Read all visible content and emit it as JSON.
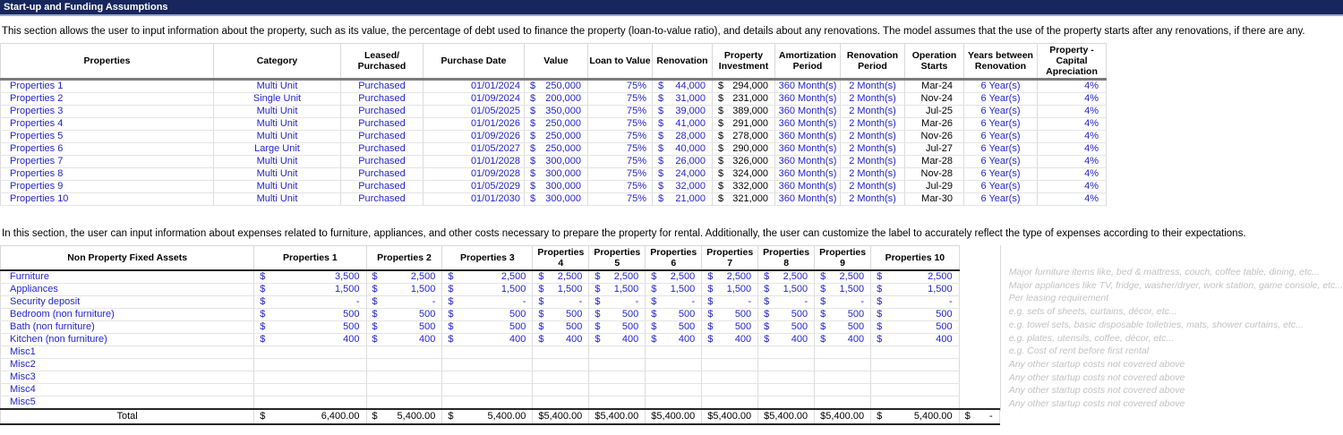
{
  "title": "Start-up and Funding Assumptions",
  "colors": {
    "header_bar": "#17265C",
    "header_bar_accent": "#9AA9CE",
    "input_blue": "#2424CF",
    "calculated_black": "#000000",
    "note_gray": "#C2C2C2",
    "gridline": "#DCDCDC"
  },
  "section1": {
    "description": "This section allows the user to input information about the property, such as its value, the percentage of debt used to finance the property (loan-to-value ratio), and details about any renovations. The model assumes that the use of the property starts after any renovations, if there are any.",
    "columns": [
      "Properties",
      "Category",
      "Leased/\nPurchased",
      "Purchase Date",
      "Value",
      "Loan to Value",
      "Renovation",
      "Property\nInvestment",
      "Amortization\nPeriod",
      "Renovation\nPeriod",
      "Operation\nStarts",
      "Years between\nRenovation",
      "Property - Capital\nApreciation"
    ],
    "rows": [
      [
        "Properties 1",
        "Multi Unit",
        "Purchased",
        "01/01/2024",
        "250,000",
        "75%",
        "44,000",
        "294,000",
        "360 Month(s)",
        "2 Month(s)",
        "Mar-24",
        "6 Year(s)",
        "4%"
      ],
      [
        "Properties 2",
        "Single Unit",
        "Purchased",
        "01/09/2024",
        "200,000",
        "75%",
        "31,000",
        "231,000",
        "360 Month(s)",
        "2 Month(s)",
        "Nov-24",
        "6 Year(s)",
        "4%"
      ],
      [
        "Properties 3",
        "Multi Unit",
        "Purchased",
        "01/05/2025",
        "350,000",
        "75%",
        "39,000",
        "389,000",
        "360 Month(s)",
        "2 Month(s)",
        "Jul-25",
        "6 Year(s)",
        "4%"
      ],
      [
        "Properties 4",
        "Multi Unit",
        "Purchased",
        "01/01/2026",
        "250,000",
        "75%",
        "41,000",
        "291,000",
        "360 Month(s)",
        "2 Month(s)",
        "Mar-26",
        "6 Year(s)",
        "4%"
      ],
      [
        "Properties 5",
        "Multi Unit",
        "Purchased",
        "01/09/2026",
        "250,000",
        "75%",
        "28,000",
        "278,000",
        "360 Month(s)",
        "2 Month(s)",
        "Nov-26",
        "6 Year(s)",
        "4%"
      ],
      [
        "Properties 6",
        "Large Unit",
        "Purchased",
        "01/05/2027",
        "250,000",
        "75%",
        "40,000",
        "290,000",
        "360 Month(s)",
        "2 Month(s)",
        "Jul-27",
        "6 Year(s)",
        "4%"
      ],
      [
        "Properties 7",
        "Multi Unit",
        "Purchased",
        "01/01/2028",
        "300,000",
        "75%",
        "26,000",
        "326,000",
        "360 Month(s)",
        "2 Month(s)",
        "Mar-28",
        "6 Year(s)",
        "4%"
      ],
      [
        "Properties 8",
        "Multi Unit",
        "Purchased",
        "01/09/2028",
        "300,000",
        "75%",
        "24,000",
        "324,000",
        "360 Month(s)",
        "2 Month(s)",
        "Nov-28",
        "6 Year(s)",
        "4%"
      ],
      [
        "Properties 9",
        "Multi Unit",
        "Purchased",
        "01/05/2029",
        "300,000",
        "75%",
        "32,000",
        "332,000",
        "360 Month(s)",
        "2 Month(s)",
        "Jul-29",
        "6 Year(s)",
        "4%"
      ],
      [
        "Properties 10",
        "Multi Unit",
        "Purchased",
        "01/01/2030",
        "300,000",
        "75%",
        "21,000",
        "321,000",
        "360 Month(s)",
        "2 Month(s)",
        "Mar-30",
        "6 Year(s)",
        "4%"
      ]
    ]
  },
  "section2": {
    "description": "In this section, the user can input information about expenses related to furniture, appliances, and other costs necessary to prepare the property for rental. Additionally, the user can customize the label to accurately reflect the type of expenses according to their expectations.",
    "columns": [
      "Non Property Fixed Assets",
      "Properties 1",
      "Properties 2",
      "Properties 3",
      "Properties 4",
      "Properties 5",
      "Properties 6",
      "Properties 7",
      "Properties 8",
      "Properties 9",
      "Properties 10"
    ],
    "rows": [
      {
        "label": "Furniture",
        "values": [
          "3,500",
          "2,500",
          "2,500",
          "2,500",
          "2,500",
          "2,500",
          "2,500",
          "2,500",
          "2,500",
          "2,500"
        ],
        "note": "Major furniture items like, bed & mattress, couch, coffee table, dining, etc..."
      },
      {
        "label": "Appliances",
        "values": [
          "1,500",
          "1,500",
          "1,500",
          "1,500",
          "1,500",
          "1,500",
          "1,500",
          "1,500",
          "1,500",
          "1,500"
        ],
        "note": "Major appliances like TV, fridge, washer/dryer, work station, game console, etc..."
      },
      {
        "label": "Security deposit",
        "values": [
          "-",
          "-",
          "-",
          "-",
          "-",
          "-",
          "-",
          "-",
          "-",
          "-"
        ],
        "note": "Per leasing requirement"
      },
      {
        "label": "Bedroom (non furniture)",
        "values": [
          "500",
          "500",
          "500",
          "500",
          "500",
          "500",
          "500",
          "500",
          "500",
          "500"
        ],
        "note": "e.g. sets of sheets, curtains, décor, etc..."
      },
      {
        "label": "Bath (non furniture)",
        "values": [
          "500",
          "500",
          "500",
          "500",
          "500",
          "500",
          "500",
          "500",
          "500",
          "500"
        ],
        "note": "e.g. towel sets, basic disposable toiletries, mats, shower curtains, etc..."
      },
      {
        "label": "Kitchen (non furniture)",
        "values": [
          "400",
          "400",
          "400",
          "400",
          "400",
          "400",
          "400",
          "400",
          "400",
          "400"
        ],
        "note": "e.g. plates, utensils, coffee, décor, etc..."
      },
      {
        "label": "Misc1",
        "values": [
          "",
          "",
          "",
          "",
          "",
          "",
          "",
          "",
          "",
          ""
        ],
        "note": "e.g. Cost of rent before first rental"
      },
      {
        "label": "Misc2",
        "values": [
          "",
          "",
          "",
          "",
          "",
          "",
          "",
          "",
          "",
          ""
        ],
        "note": "Any other startup costs not covered above"
      },
      {
        "label": "Misc3",
        "values": [
          "",
          "",
          "",
          "",
          "",
          "",
          "",
          "",
          "",
          ""
        ],
        "note": "Any other startup costs not covered above"
      },
      {
        "label": "Misc4",
        "values": [
          "",
          "",
          "",
          "",
          "",
          "",
          "",
          "",
          "",
          ""
        ],
        "note": "Any other startup costs not covered above"
      },
      {
        "label": "Misc5",
        "values": [
          "",
          "",
          "",
          "",
          "",
          "",
          "",
          "",
          "",
          ""
        ],
        "note": "Any other startup costs not covered above"
      }
    ],
    "total_row": {
      "label": "Total",
      "values": [
        "6,400.00",
        "5,400.00",
        "5,400.00",
        "5,400.00",
        "5,400.00",
        "5,400.00",
        "5,400.00",
        "5,400.00",
        "5,400.00",
        "5,400.00"
      ],
      "extra": "-"
    }
  }
}
